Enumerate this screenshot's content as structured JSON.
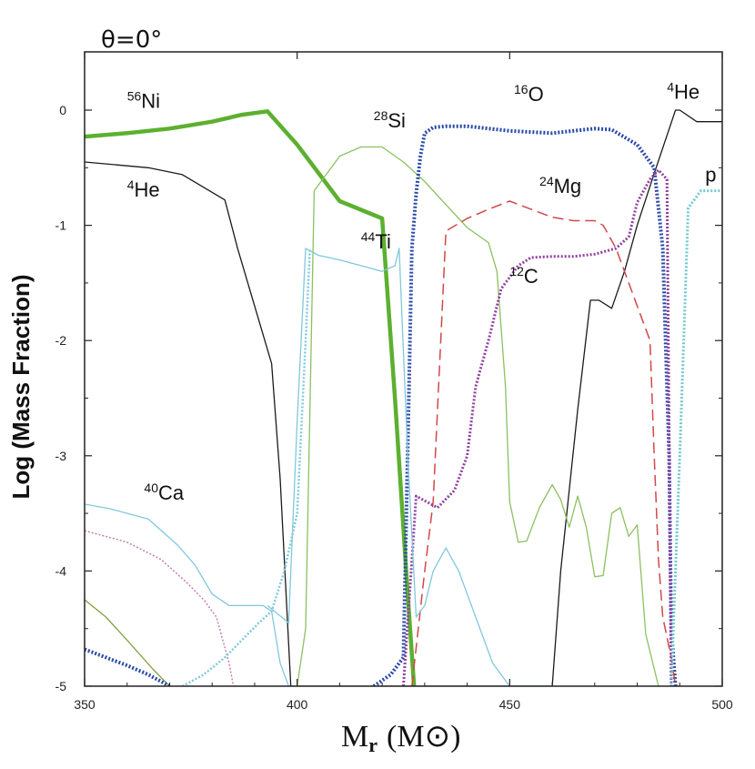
{
  "colors": {
    "Ni56": "#5cb030",
    "He4": "#1a1a1a",
    "Si28": "#8cc060",
    "O16": "#2a4aa8",
    "Mg24": "#d04848",
    "C12": "#9040a0",
    "Ti44": "#80c8dc",
    "Ca40": "#80c8dc",
    "p": "#70c8d0",
    "Ca40_dotted": "#c080b0",
    "Ar36": "#80a040"
  },
  "chart_data": {
    "type": "line",
    "title": "θ=0°",
    "xlabel_main": "M",
    "xlabel_sub": "r",
    "xlabel_unit": "(M",
    "xlabel_unit_symbol": "⊙",
    "xlabel_unit_close": ")",
    "ylabel": "Log (Mass Fraction)",
    "xlim": [
      350,
      500
    ],
    "ylim": [
      -5,
      0.5
    ],
    "xticks": [
      350,
      400,
      450,
      500
    ],
    "xtick_labels": [
      "350",
      "400",
      "450",
      "500"
    ],
    "yticks": [
      0,
      -1,
      -2,
      -3,
      -4,
      -5
    ],
    "ytick_labels": [
      "0",
      "-1",
      "-2",
      "-3",
      "-4",
      "-5"
    ],
    "series": [
      {
        "name": "56Ni",
        "key": "Ni56",
        "style": "solid",
        "width": 4.5,
        "x": [
          350,
          360,
          370,
          380,
          387,
          393,
          400,
          410,
          420,
          423,
          426,
          427.5
        ],
        "y": [
          -0.23,
          -0.2,
          -0.16,
          -0.1,
          -0.04,
          -0.01,
          -0.3,
          -0.79,
          -0.94,
          -2.5,
          -4.2,
          -5.0
        ]
      },
      {
        "name": "4He",
        "key": "He4",
        "style": "solid",
        "width": 1.3,
        "x": [
          350,
          365,
          373,
          383,
          386,
          390,
          394,
          396,
          398.5,
          460,
          462,
          466,
          469,
          471,
          474,
          477,
          480,
          484,
          489,
          490,
          494,
          500
        ],
        "y": [
          -0.45,
          -0.5,
          -0.56,
          -0.78,
          -1.2,
          -1.7,
          -2.2,
          -3.2,
          -5.0,
          -5.0,
          -4.0,
          -2.6,
          -1.65,
          -1.65,
          -1.72,
          -1.4,
          -1.0,
          -0.55,
          0.0,
          0.0,
          -0.1,
          -0.1
        ]
      },
      {
        "name": "28Si",
        "key": "Si28",
        "style": "solid",
        "width": 1.3,
        "x": [
          400,
          402,
          404,
          410,
          415,
          420,
          425,
          430,
          435,
          440,
          445,
          447,
          449,
          450,
          452,
          454,
          457,
          460,
          462,
          464,
          466,
          468,
          470,
          472,
          474,
          476,
          478,
          480,
          482,
          485
        ],
        "y": [
          -5.0,
          -4.5,
          -0.7,
          -0.4,
          -0.32,
          -0.32,
          -0.45,
          -0.62,
          -0.82,
          -1.02,
          -1.15,
          -1.4,
          -2.4,
          -3.4,
          -3.75,
          -3.74,
          -3.45,
          -3.25,
          -3.38,
          -3.62,
          -3.35,
          -3.62,
          -4.05,
          -4.04,
          -3.5,
          -3.45,
          -3.7,
          -3.6,
          -4.55,
          -5.0
        ]
      },
      {
        "name": "16O",
        "key": "O16",
        "style": "dotted",
        "width": 4,
        "x": [
          418,
          422,
          425,
          427,
          428,
          429,
          430,
          432,
          435,
          440,
          450,
          460,
          470,
          474,
          480,
          484,
          486,
          487.5,
          488,
          489
        ],
        "y": [
          -5.0,
          -4.9,
          -4.75,
          -1.2,
          -0.72,
          -0.4,
          -0.2,
          -0.15,
          -0.14,
          -0.14,
          -0.18,
          -0.2,
          -0.16,
          -0.17,
          -0.3,
          -0.5,
          -1.2,
          -3.0,
          -4.5,
          -5.0
        ]
      },
      {
        "name": "24Mg",
        "key": "Mg24",
        "style": "dashed",
        "width": 1.5,
        "x": [
          427,
          430,
          432,
          435,
          440,
          445,
          450,
          460,
          465,
          470,
          472,
          475,
          478,
          480,
          483,
          484,
          485,
          486,
          488,
          489
        ],
        "y": [
          -5.0,
          -4.0,
          -3.4,
          -1.05,
          -0.94,
          -0.86,
          -0.79,
          -0.93,
          -0.96,
          -0.96,
          -1.0,
          -1.2,
          -1.5,
          -1.7,
          -2.0,
          -3.0,
          -3.9,
          -4.4,
          -4.75,
          -5.0
        ]
      },
      {
        "name": "12C",
        "key": "C12",
        "style": "dotted",
        "width": 3,
        "x": [
          425,
          428,
          433,
          437,
          440,
          442,
          445,
          448,
          452,
          455,
          460,
          465,
          470,
          475,
          478,
          480,
          483,
          485,
          487,
          488
        ],
        "y": [
          -5.0,
          -3.35,
          -3.45,
          -3.3,
          -3.0,
          -2.4,
          -2.0,
          -1.55,
          -1.35,
          -1.28,
          -1.27,
          -1.27,
          -1.25,
          -1.2,
          -1.1,
          -0.8,
          -0.6,
          -0.52,
          -0.6,
          -5.0
        ]
      },
      {
        "name": "44Ti",
        "key": "Ti44",
        "style": "solid",
        "width": 1.3,
        "x": [
          393,
          398,
          400,
          402,
          405,
          410,
          415,
          420,
          423,
          424,
          426,
          428,
          430,
          432,
          435,
          438,
          442,
          446,
          450,
          455,
          458
        ],
        "y": [
          -4.3,
          -4.45,
          -2.7,
          -1.2,
          -1.26,
          -1.3,
          -1.35,
          -1.4,
          -1.35,
          -1.2,
          -3.0,
          -4.4,
          -4.3,
          -4.0,
          -3.8,
          -4.0,
          -4.4,
          -4.8,
          -5.0,
          -5.0,
          -5.0
        ]
      },
      {
        "name": "40Ca",
        "key": "Ca40",
        "style": "solid",
        "width": 1.3,
        "x": [
          350,
          356,
          365,
          372,
          376,
          380,
          384,
          388,
          392,
          394,
          396,
          398
        ],
        "y": [
          -3.42,
          -3.46,
          -3.55,
          -3.78,
          -3.95,
          -4.2,
          -4.3,
          -4.3,
          -4.3,
          -4.35,
          -4.8,
          -5.0
        ]
      },
      {
        "name": "p",
        "key": "p",
        "style": "dotted",
        "width": 3,
        "x": [
          488,
          490,
          492,
          495,
          500
        ],
        "y": [
          -5.0,
          -3.0,
          -0.85,
          -0.7,
          -0.7
        ]
      },
      {
        "name": "",
        "key": "Ca40_dotted",
        "style": "dotted",
        "width": 1.5,
        "x": [
          350,
          360,
          368,
          374,
          378,
          381,
          384,
          385,
          386
        ],
        "y": [
          -3.65,
          -3.75,
          -3.9,
          -4.1,
          -4.25,
          -4.4,
          -4.8,
          -5.0,
          -5.0
        ]
      },
      {
        "name": "",
        "key": "Ti44",
        "style": "dotted",
        "width": 2.5,
        "x": [
          373,
          378,
          383,
          387,
          391,
          394,
          397,
          400,
          402,
          403
        ],
        "y": [
          -5.0,
          -4.9,
          -4.75,
          -4.6,
          -4.45,
          -4.35,
          -4.0,
          -3.5,
          -2.0,
          -1.2
        ]
      },
      {
        "name": "",
        "key": "Ar36",
        "style": "solid",
        "width": 1.3,
        "x": [
          350,
          355,
          360,
          366,
          370
        ],
        "y": [
          -4.25,
          -4.4,
          -4.6,
          -4.85,
          -5.0
        ]
      },
      {
        "name": "",
        "key": "O16",
        "style": "dotted",
        "width": 4,
        "x": [
          350,
          355,
          360,
          365,
          370
        ],
        "y": [
          -4.68,
          -4.75,
          -4.82,
          -4.9,
          -5.0
        ]
      }
    ],
    "labels": [
      {
        "mass": "56",
        "el": "Ni",
        "x": 360,
        "y": 0.02
      },
      {
        "mass": "4",
        "el": "He",
        "x": 360,
        "y": -0.75
      },
      {
        "mass": "28",
        "el": "Si",
        "x": 418,
        "y": -0.15
      },
      {
        "mass": "16",
        "el": "O",
        "x": 451,
        "y": 0.08
      },
      {
        "mass": "4",
        "el": "He",
        "x": 487,
        "y": 0.1
      },
      {
        "mass": "24",
        "el": "Mg",
        "x": 457,
        "y": -0.72
      },
      {
        "mass": "44",
        "el": "Ti",
        "x": 415,
        "y": -1.2
      },
      {
        "mass": "12",
        "el": "C",
        "x": 450,
        "y": -1.5
      },
      {
        "mass": "",
        "el": "p",
        "x": 496,
        "y": -0.62
      },
      {
        "mass": "40",
        "el": "Ca",
        "x": 364,
        "y": -3.38
      }
    ]
  }
}
